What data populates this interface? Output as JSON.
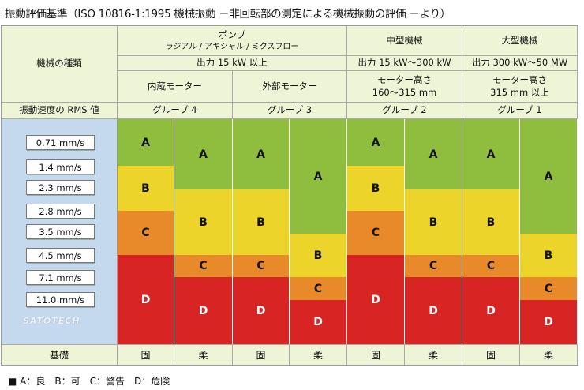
{
  "title": "振動評価基準（ISO 10816-1:1995 機械振動 －非回転部の測定による機械振動の評価 －より）",
  "header": {
    "machine_type": "機械の種類",
    "pump": "ポンプ",
    "pump_sub": "ラジアル / アキシャル / ミクスフロー",
    "medium": "中型機械",
    "large": "大型機械",
    "pump_output": "出力 15 kW 以上",
    "medium_output": "出力 15 kW〜300 kW",
    "large_output": "出力 300 kW〜50 MW",
    "internal_motor": "内蔵モーター",
    "external_motor": "外部モーター",
    "medium_height": [
      "モーター高さ",
      "160〜315 mm"
    ],
    "large_height": [
      "モーター高さ",
      "315 mm 以上"
    ],
    "rms_label": "振動速度の RMS 値",
    "groups": [
      "グループ 4",
      "グループ 3",
      "グループ 2",
      "グループ 1"
    ]
  },
  "velocities": [
    "0.71 mm/s",
    "1.4 mm/s",
    "2.3 mm/s",
    "2.8 mm/s",
    "3.5 mm/s",
    "4.5 mm/s",
    "7.1 mm/s",
    "11.0 mm/s"
  ],
  "logo_text": "SATOTECH",
  "zone_labels": {
    "A": "A",
    "B": "B",
    "C": "C",
    "D": "D"
  },
  "columns": [
    {
      "zones": [
        "A",
        "B",
        "C",
        "D"
      ],
      "boundaries_mm_s": [
        1.4,
        2.8,
        4.5
      ]
    },
    {
      "zones": [
        "A",
        "B",
        "C",
        "D"
      ],
      "boundaries_mm_s": [
        2.3,
        4.5,
        7.1
      ]
    },
    {
      "zones": [
        "A",
        "B",
        "C",
        "D"
      ],
      "boundaries_mm_s": [
        2.3,
        4.5,
        7.1
      ]
    },
    {
      "zones": [
        "A",
        "B",
        "C",
        "D"
      ],
      "boundaries_mm_s": [
        3.5,
        7.1,
        11.0
      ]
    },
    {
      "zones": [
        "A",
        "B",
        "C",
        "D"
      ],
      "boundaries_mm_s": [
        1.4,
        2.8,
        4.5
      ]
    },
    {
      "zones": [
        "A",
        "B",
        "C",
        "D"
      ],
      "boundaries_mm_s": [
        2.3,
        4.5,
        7.1
      ]
    },
    {
      "zones": [
        "A",
        "B",
        "C",
        "D"
      ],
      "boundaries_mm_s": [
        2.3,
        4.5,
        7.1
      ]
    },
    {
      "zones": [
        "A",
        "B",
        "C",
        "D"
      ],
      "boundaries_mm_s": [
        3.5,
        7.1,
        11.0
      ]
    }
  ],
  "foundation_label": "基礎",
  "foundations": [
    "固",
    "柔",
    "固",
    "柔",
    "固",
    "柔",
    "固",
    "柔"
  ],
  "legend": "■ A：良　B：可　C：警告　D：危険",
  "colors": {
    "A": "#8fbd3d",
    "B": "#ecd42a",
    "C": "#e8892a",
    "D": "#d92424"
  }
}
